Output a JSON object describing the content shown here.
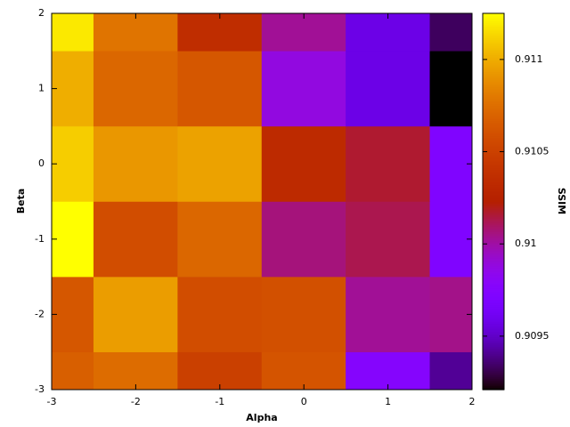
{
  "chart_data": {
    "type": "heatmap",
    "xlabel": "Alpha",
    "ylabel": "Beta",
    "colorbar_label": "SSIM",
    "x": [
      -3,
      -2,
      -1,
      0,
      1,
      2
    ],
    "y": [
      -3,
      -2,
      -1,
      0,
      1,
      2
    ],
    "z": [
      [
        0.910679,
        0.91074,
        0.910495,
        0.910618,
        0.909761,
        0.909414
      ],
      [
        0.910638,
        0.910944,
        0.910577,
        0.910597,
        0.910026,
        0.910046
      ],
      [
        0.91125,
        0.910577,
        0.91072,
        0.910067,
        0.910128,
        0.90972
      ],
      [
        0.911107,
        0.910924,
        0.910964,
        0.910332,
        0.910169,
        0.90972
      ],
      [
        0.911005,
        0.91072,
        0.910638,
        0.909883,
        0.909577,
        0.90921
      ],
      [
        0.911189,
        0.910781,
        0.910352,
        0.910026,
        0.909577,
        0.909332
      ]
    ],
    "xlim": [
      -3,
      2
    ],
    "ylim": [
      -3,
      2
    ],
    "xticks": [
      -3,
      -2,
      -1,
      0,
      1,
      2
    ],
    "yticks": [
      -3,
      -2,
      -1,
      0,
      1,
      2
    ],
    "clim": [
      0.90921,
      0.91125
    ],
    "colorbar_ticks": [
      0.9095,
      0.91,
      0.9105,
      0.911
    ],
    "colormap": "rgbformulae 7,5,15"
  }
}
